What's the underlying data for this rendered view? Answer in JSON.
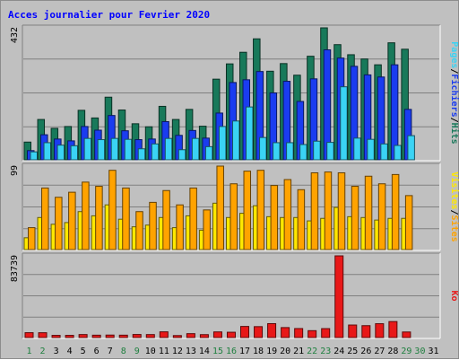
{
  "chart_data": {
    "type": "bar",
    "title": "Acces journalier pour Fevrier 2020",
    "categories": [
      "1",
      "2",
      "3",
      "4",
      "5",
      "6",
      "7",
      "8",
      "9",
      "10",
      "11",
      "12",
      "13",
      "14",
      "15",
      "16",
      "17",
      "18",
      "19",
      "20",
      "21",
      "22",
      "23",
      "24",
      "25",
      "26",
      "27",
      "28",
      "29",
      "30",
      "31"
    ],
    "weekend_days": [
      "1",
      "2",
      "8",
      "9",
      "15",
      "16",
      "22",
      "23",
      "29",
      "30"
    ],
    "colors": {
      "hits": "#18795a",
      "fichiers": "#1a3cf0",
      "pages": "#3ad3f4",
      "visites": "#ffa300",
      "sites": "#ffe800",
      "ko": "#e81818",
      "weekday_label": "#000000",
      "weekend_label": "#208040",
      "title": "#0000ff"
    },
    "panels": [
      {
        "name": "hits-fichiers-pages",
        "ymax_label": "432",
        "ylim": [
          0,
          432
        ],
        "legend": [
          {
            "label": "Hits",
            "color": "#18795a"
          },
          {
            "label": "Fichiers",
            "color": "#1a3cf0"
          },
          {
            "label": "Pages",
            "color": "#3ad3f4"
          }
        ],
        "separator": "/",
        "series": [
          {
            "name": "Hits",
            "values": [
              58,
              132,
              103,
              109,
              162,
              137,
              205,
              163,
              118,
              108,
              175,
              132,
              165,
              110,
              264,
              314,
              352,
              396,
              290,
              315,
              277,
              339,
              432,
              377,
              344,
              330,
              311,
              383,
              362,
              0,
              0
            ]
          },
          {
            "name": "Fichiers",
            "values": [
              30,
              82,
              68,
              62,
              109,
              97,
              145,
              95,
              66,
              68,
              125,
              80,
              96,
              71,
              153,
              253,
              262,
              289,
              219,
              257,
              191,
              265,
              360,
              333,
              306,
              278,
              271,
              311,
              165,
              0,
              0
            ]
          },
          {
            "name": "Pages",
            "values": [
              26,
              56,
              48,
              46,
              70,
              66,
              70,
              67,
              36,
              52,
              70,
              33,
              70,
              43,
              109,
              127,
              173,
              73,
              56,
              56,
              50,
              61,
              57,
              239,
              71,
              67,
              52,
              47,
              79,
              0,
              0
            ]
          }
        ]
      },
      {
        "name": "sites-visites",
        "ymax_label": "99",
        "ylim": [
          0,
          99
        ],
        "legend": [
          {
            "label": "Sites",
            "color": "#ffa300"
          },
          {
            "label": "Visites",
            "color": "#ffe800"
          }
        ],
        "separator": "/",
        "series": [
          {
            "name": "Visites",
            "values": [
              26,
              73,
              62,
              68,
              80,
              75,
              94,
              73,
              45,
              56,
              70,
              53,
              73,
              47,
              99,
              78,
              93,
              94,
              76,
              83,
              71,
              91,
              92,
              91,
              75,
              87,
              78,
              89,
              64,
              0,
              0
            ]
          },
          {
            "name": "Sites",
            "values": [
              14,
              38,
              30,
              32,
              45,
              40,
              53,
              36,
              27,
              29,
              38,
              26,
              40,
              23,
              55,
              38,
              43,
              52,
              39,
              38,
              38,
              34,
              37,
              50,
              39,
              38,
              35,
              37,
              37,
              0,
              0
            ]
          }
        ]
      },
      {
        "name": "ko",
        "ymax_label": "83739",
        "ylim": [
          0,
          83739
        ],
        "legend": [
          {
            "label": "Ko",
            "color": "#e81818"
          }
        ],
        "series": [
          {
            "name": "Ko",
            "values": [
              5000,
              4950,
              2260,
              2260,
              3090,
              2440,
              2550,
              2450,
              3150,
              3060,
              5870,
              2050,
              4000,
              3000,
              5790,
              5450,
              11390,
              11200,
              14270,
              10230,
              9240,
              7070,
              9170,
              83739,
              12850,
              12200,
              14200,
              16400,
              5710,
              0,
              0
            ]
          }
        ]
      }
    ]
  }
}
